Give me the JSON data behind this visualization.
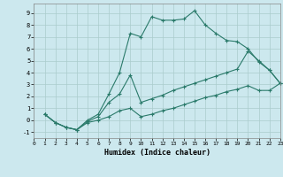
{
  "xlabel": "Humidex (Indice chaleur)",
  "background_color": "#cce8ee",
  "grid_color": "#aacccc",
  "line_color": "#2a7a6a",
  "xlim": [
    0,
    23
  ],
  "ylim": [
    -1.5,
    9.8
  ],
  "xticks": [
    0,
    1,
    2,
    3,
    4,
    5,
    6,
    7,
    8,
    9,
    10,
    11,
    12,
    13,
    14,
    15,
    16,
    17,
    18,
    19,
    20,
    21,
    22,
    23
  ],
  "yticks": [
    -1,
    0,
    1,
    2,
    3,
    4,
    5,
    6,
    7,
    8,
    9
  ],
  "line1_x": [
    1,
    2,
    3,
    4,
    5,
    6,
    7,
    8,
    9,
    10,
    11,
    12,
    13,
    14,
    15,
    16,
    17,
    18,
    19,
    20,
    21,
    22,
    23
  ],
  "line1_y": [
    0.5,
    -0.2,
    -0.6,
    -0.8,
    0.0,
    0.5,
    2.2,
    4.0,
    7.3,
    7.0,
    8.7,
    8.4,
    8.4,
    8.5,
    9.2,
    8.0,
    7.3,
    6.7,
    6.6,
    6.0,
    4.9,
    4.2,
    3.1
  ],
  "line2_x": [
    1,
    2,
    3,
    4,
    5,
    6,
    7,
    8,
    9,
    10,
    11,
    12,
    13,
    14,
    15,
    16,
    17,
    18,
    19,
    20,
    21,
    22,
    23
  ],
  "line2_y": [
    0.5,
    -0.2,
    -0.6,
    -0.8,
    -0.1,
    0.3,
    1.5,
    2.2,
    3.8,
    1.5,
    1.8,
    2.1,
    2.5,
    2.8,
    3.1,
    3.4,
    3.7,
    4.0,
    4.3,
    5.8,
    5.0,
    4.2,
    3.1
  ],
  "line3_x": [
    1,
    2,
    3,
    4,
    5,
    6,
    7,
    8,
    9,
    10,
    11,
    12,
    13,
    14,
    15,
    16,
    17,
    18,
    19,
    20,
    21,
    22,
    23
  ],
  "line3_y": [
    0.5,
    -0.2,
    -0.6,
    -0.8,
    -0.2,
    0.0,
    0.3,
    0.8,
    1.0,
    0.3,
    0.5,
    0.8,
    1.0,
    1.3,
    1.6,
    1.9,
    2.1,
    2.4,
    2.6,
    2.9,
    2.5,
    2.5,
    3.1
  ]
}
